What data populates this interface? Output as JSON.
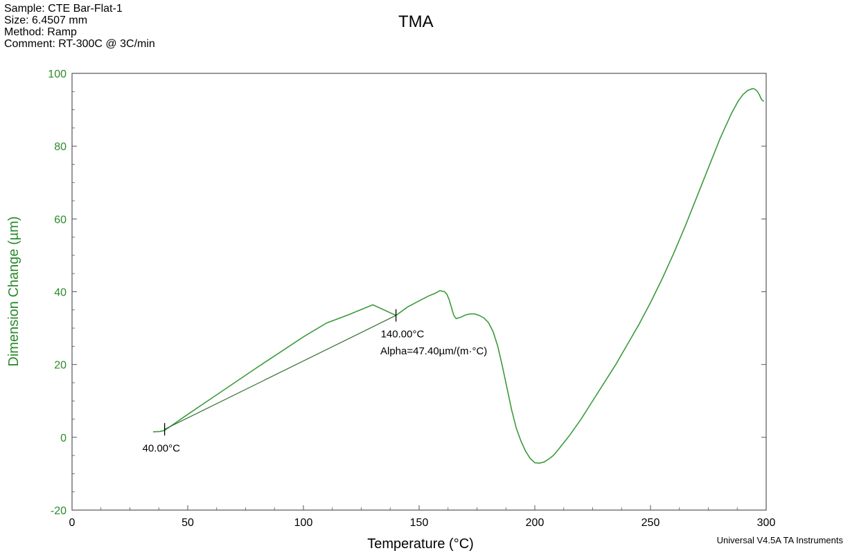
{
  "header": {
    "sample": "Sample: CTE Bar-Flat-1",
    "size": "Size:  6.4507 mm",
    "method": "Method: Ramp",
    "comment": "Comment: RT-300C @ 3C/min"
  },
  "footer": "Universal V4.5A TA Instruments",
  "chart_data": {
    "type": "line",
    "title": "TMA",
    "xlabel": "Temperature (°C)",
    "ylabel": "Dimension Change (µm)",
    "xlim": [
      0,
      300
    ],
    "ylim": [
      -20,
      100
    ],
    "xticks": [
      0,
      50,
      100,
      150,
      200,
      250,
      300
    ],
    "yticks": [
      -20,
      0,
      20,
      40,
      60,
      80,
      100
    ],
    "grid": false,
    "colors": {
      "curve": "#3a9a3a",
      "axis_text": "#2a8a2a",
      "frame": "#555555"
    },
    "series": [
      {
        "x": [
          35,
          38,
          40,
          50,
          60,
          70,
          80,
          90,
          100,
          110,
          120,
          130,
          140,
          145,
          150,
          154,
          157,
          159,
          161,
          162,
          163,
          164,
          165,
          166,
          168,
          170,
          172,
          174,
          176,
          178,
          180,
          182,
          184,
          186,
          188,
          190,
          192,
          194,
          196,
          198,
          200,
          202,
          204,
          206,
          208,
          210,
          215,
          220,
          225,
          230,
          235,
          240,
          245,
          250,
          255,
          260,
          265,
          270,
          275,
          280,
          285,
          288,
          290,
          292,
          294,
          295,
          296,
          297,
          298,
          299
        ],
        "y": [
          1.5,
          1.6,
          1.9,
          6.3,
          10.6,
          14.9,
          19.2,
          23.4,
          27.6,
          31.4,
          33.8,
          36.4,
          33.5,
          35.8,
          37.5,
          38.8,
          39.6,
          40.3,
          40.0,
          39.3,
          37.8,
          35.6,
          33.5,
          32.6,
          33.0,
          33.6,
          33.9,
          33.9,
          33.5,
          32.8,
          31.5,
          29.0,
          25.0,
          19.5,
          13.5,
          7.5,
          2.5,
          -1.0,
          -3.8,
          -5.8,
          -7.0,
          -7.1,
          -6.8,
          -6.0,
          -5.0,
          -3.5,
          0.5,
          5.0,
          10.0,
          15.0,
          20.0,
          25.5,
          31.0,
          37.0,
          43.5,
          50.5,
          58.0,
          66.0,
          74.0,
          82.0,
          89.0,
          92.5,
          94.2,
          95.3,
          95.8,
          95.7,
          95.2,
          94.2,
          92.8,
          92.3
        ]
      }
    ],
    "markers": [
      {
        "x": 40,
        "y": 2.2,
        "label": "40.00°C"
      },
      {
        "x": 140,
        "y": 33.5,
        "label": "140.00°C"
      }
    ],
    "annotations": [
      {
        "text": "Alpha=47.40µm/(m·°C)"
      }
    ]
  }
}
